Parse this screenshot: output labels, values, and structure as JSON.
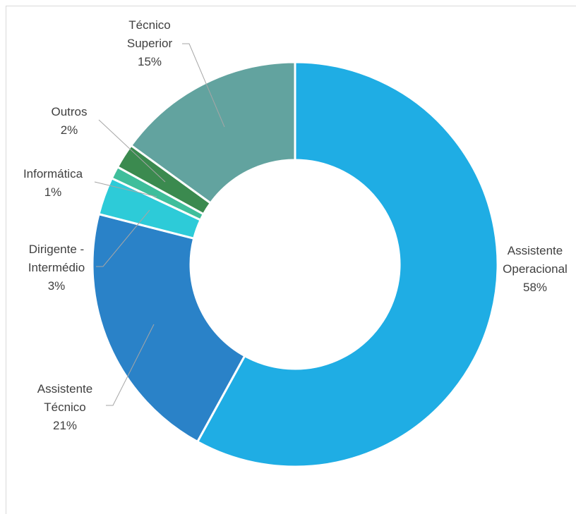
{
  "chart_data": {
    "type": "donut",
    "categories": [
      "Assistente Operacional",
      "Assistente Técnico",
      "Dirigente - Intermédio",
      "Informática",
      "Outros",
      "Técnico Superior"
    ],
    "values": [
      58,
      21,
      3,
      1,
      2,
      15
    ],
    "value_labels": [
      "58%",
      "21%",
      "3%",
      "1%",
      "2%",
      "15%"
    ],
    "colors": [
      "#1fade4",
      "#2a82c8",
      "#2dcbd8",
      "#3fbe9b",
      "#3b8a4f",
      "#62a39f"
    ]
  }
}
